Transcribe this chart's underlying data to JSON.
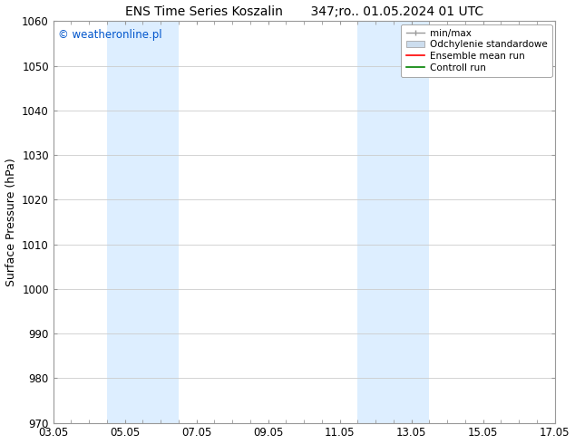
{
  "title": "ENS Time Series Koszalin       347;ro.. 01.05.2024 01 UTC",
  "ylabel": "Surface Pressure (hPa)",
  "ylim": [
    970,
    1060
  ],
  "yticks": [
    970,
    980,
    990,
    1000,
    1010,
    1020,
    1030,
    1040,
    1050,
    1060
  ],
  "xlim": [
    0,
    14
  ],
  "xtick_labels": [
    "03.05",
    "05.05",
    "07.05",
    "09.05",
    "11.05",
    "13.05",
    "15.05",
    "17.05"
  ],
  "xtick_positions": [
    0,
    2,
    4,
    6,
    8,
    10,
    12,
    14
  ],
  "shaded_bands": [
    {
      "x_start": 1.5,
      "x_end": 3.5
    },
    {
      "x_start": 8.5,
      "x_end": 10.5
    }
  ],
  "shaded_color": "#ddeeff",
  "watermark": "© weatheronline.pl",
  "watermark_color": "#0055cc",
  "legend_items": [
    {
      "label": "min/max",
      "color": "#999999",
      "lw": 1.0,
      "ls": "-"
    },
    {
      "label": "Odchylenie standardowe",
      "color": "#ccddee",
      "lw": 8,
      "ls": "-"
    },
    {
      "label": "Ensemble mean run",
      "color": "red",
      "lw": 1.2,
      "ls": "-"
    },
    {
      "label": "Controll run",
      "color": "green",
      "lw": 1.2,
      "ls": "-"
    }
  ],
  "bg_color": "#ffffff",
  "grid_color": "#cccccc",
  "spine_color": "#999999",
  "title_fontsize": 10,
  "ylabel_fontsize": 9,
  "tick_fontsize": 8.5,
  "watermark_fontsize": 8.5,
  "legend_fontsize": 7.5
}
